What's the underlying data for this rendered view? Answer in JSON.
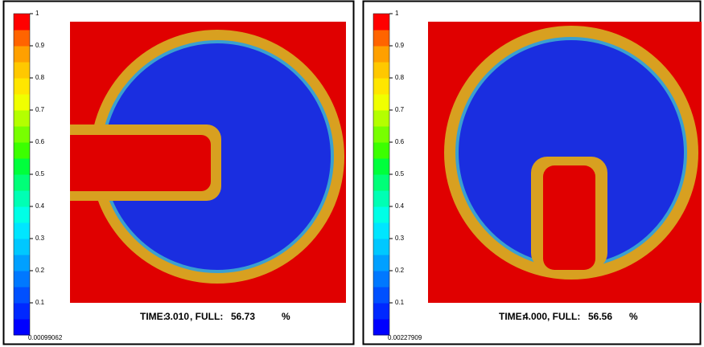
{
  "panels": [
    {
      "colorbar": {
        "labels": [
          1,
          0.9,
          0.8,
          0.7,
          0.6,
          0.5,
          0.4,
          0.3,
          0.2,
          0.1
        ],
        "min_label": 0.00099062
      },
      "caption": {
        "time_label": "TIME:",
        "time": "3.010",
        "full_label": ", FULL:",
        "full": 56.73,
        "unit": "%"
      }
    },
    {
      "colorbar": {
        "labels": [
          1,
          0.9,
          0.8,
          0.7,
          0.6,
          0.5,
          0.4,
          0.3,
          0.2,
          0.1
        ],
        "min_label": 0.00227909
      },
      "caption": {
        "time_label": "TIME:",
        "time": "4.000",
        "full_label": ", FULL:",
        "full": 56.56,
        "unit": "%"
      }
    }
  ]
}
